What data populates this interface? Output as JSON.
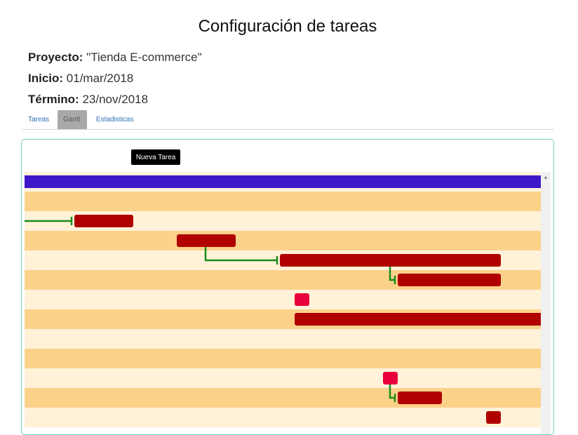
{
  "header": {
    "title": "Configuración de tareas",
    "project_label": "Proyecto:",
    "project_value": "\"Tienda E-commerce\"",
    "start_label": "Inicio:",
    "start_value": "01/mar/2018",
    "end_label": "Término:",
    "end_value": "23/nov/2018"
  },
  "tabs": [
    {
      "label": "Tareas",
      "active": false
    },
    {
      "label": "Gantt",
      "active": true
    },
    {
      "label": "Estadisticas",
      "active": false
    }
  ],
  "gantt": {
    "new_task_label": "Nueva Tarea",
    "colors": {
      "summary": "#3e17c9",
      "task": "#b00000",
      "milestone": "#e8003a",
      "dependency": "#1a8c1a",
      "row_light": "#fff2d9",
      "row_dark": "#fcd18a"
    }
  }
}
